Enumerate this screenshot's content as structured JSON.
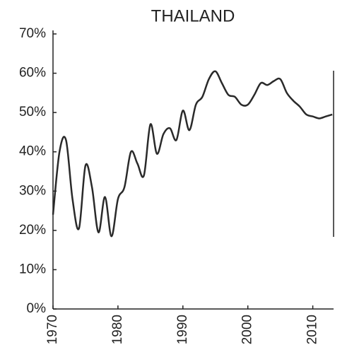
{
  "chart_data": {
    "type": "line",
    "title": "THAILAND",
    "x": [
      1970,
      1971,
      1972,
      1973,
      1974,
      1975,
      1976,
      1977,
      1978,
      1979,
      1980,
      1981,
      1982,
      1983,
      1984,
      1985,
      1986,
      1987,
      1988,
      1989,
      1990,
      1991,
      1992,
      1993,
      1994,
      1995,
      1996,
      1997,
      1998,
      1999,
      2000,
      2001,
      2002,
      2003,
      2004,
      2005,
      2006,
      2007,
      2008,
      2009,
      2010,
      2011,
      2012,
      2013
    ],
    "series": [
      {
        "color": "#2a2a2a",
        "values": [
          24,
          40,
          43,
          28,
          20.5,
          36.5,
          31,
          19.5,
          28.5,
          18.5,
          28,
          31,
          40,
          37,
          34,
          47,
          39.5,
          44.5,
          46,
          43,
          50.5,
          45.5,
          52,
          54,
          58.5,
          60.5,
          57.5,
          54.5,
          54,
          52,
          52,
          54.5,
          57.5,
          57,
          58,
          58.5,
          55,
          53,
          51.5,
          49.5,
          49,
          48.5,
          49,
          49.5
        ]
      }
    ],
    "xlim": [
      1970,
      2013.2
    ],
    "xticks": [
      1970,
      1980,
      1990,
      2000,
      2010
    ],
    "ylim": [
      0,
      70
    ],
    "yticks": [
      {
        "value": 0,
        "label": "0%"
      },
      {
        "value": 10,
        "label": "10%"
      },
      {
        "value": 20,
        "label": "20%"
      },
      {
        "value": 30,
        "label": "30%"
      },
      {
        "value": 40,
        "label": "40%"
      },
      {
        "value": 50,
        "label": "50%"
      },
      {
        "value": 60,
        "label": "60%"
      },
      {
        "value": 70,
        "label": "70%"
      }
    ]
  }
}
